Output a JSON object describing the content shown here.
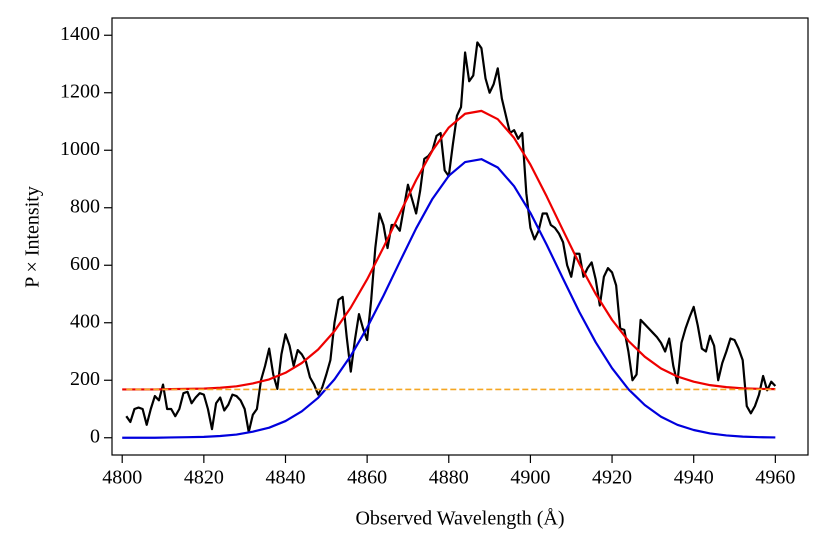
{
  "chart_data": {
    "type": "line",
    "xlabel": "Observed Wavelength (Å)",
    "ylabel": "P × Intensity",
    "xlim": [
      4797.5,
      4968
    ],
    "ylim": [
      -60,
      1460
    ],
    "xticks": [
      4800,
      4820,
      4840,
      4860,
      4880,
      4900,
      4920,
      4940,
      4960
    ],
    "yticks": [
      0,
      200,
      400,
      600,
      800,
      1000,
      1200,
      1400
    ],
    "grid": false,
    "series": [
      {
        "color": "#000000",
        "style": "solid",
        "x": [
          4801,
          4802,
          4803,
          4804,
          4805,
          4806,
          4807,
          4808,
          4809,
          4810,
          4811,
          4812,
          4813,
          4814,
          4815,
          4816,
          4817,
          4818,
          4819,
          4820,
          4821,
          4822,
          4823,
          4824,
          4825,
          4826,
          4827,
          4828,
          4829,
          4830,
          4831,
          4832,
          4833,
          4834,
          4835,
          4836,
          4837,
          4838,
          4839,
          4840,
          4841,
          4842,
          4843,
          4844,
          4845,
          4846,
          4847,
          4848,
          4849,
          4850,
          4851,
          4852,
          4853,
          4854,
          4855,
          4856,
          4857,
          4858,
          4859,
          4860,
          4861,
          4862,
          4863,
          4864,
          4865,
          4866,
          4867,
          4868,
          4869,
          4870,
          4871,
          4872,
          4873,
          4874,
          4875,
          4876,
          4877,
          4878,
          4879,
          4880,
          4881,
          4882,
          4883,
          4884,
          4885,
          4886,
          4887,
          4888,
          4889,
          4890,
          4891,
          4892,
          4893,
          4894,
          4895,
          4896,
          4897,
          4898,
          4899,
          4900,
          4901,
          4902,
          4903,
          4904,
          4905,
          4906,
          4907,
          4908,
          4909,
          4910,
          4911,
          4912,
          4913,
          4914,
          4915,
          4916,
          4917,
          4918,
          4919,
          4920,
          4921,
          4922,
          4923,
          4924,
          4925,
          4926,
          4927,
          4928,
          4929,
          4930,
          4931,
          4932,
          4933,
          4934,
          4935,
          4936,
          4937,
          4938,
          4939,
          4940,
          4941,
          4942,
          4943,
          4944,
          4945,
          4946,
          4947,
          4948,
          4949,
          4950,
          4951,
          4952,
          4953,
          4954,
          4955,
          4956,
          4957,
          4958,
          4959,
          4960
        ],
        "values": [
          75,
          55,
          100,
          105,
          100,
          45,
          100,
          145,
          130,
          185,
          100,
          100,
          75,
          100,
          155,
          160,
          120,
          140,
          155,
          150,
          100,
          30,
          120,
          140,
          95,
          115,
          150,
          145,
          130,
          100,
          20,
          80,
          100,
          200,
          250,
          310,
          220,
          170,
          290,
          360,
          320,
          250,
          305,
          290,
          265,
          210,
          185,
          150,
          175,
          220,
          270,
          400,
          480,
          490,
          350,
          230,
          340,
          430,
          380,
          340,
          480,
          660,
          780,
          740,
          660,
          740,
          740,
          720,
          800,
          880,
          830,
          780,
          860,
          970,
          980,
          1000,
          1050,
          1060,
          930,
          910,
          1020,
          1120,
          1150,
          1340,
          1240,
          1260,
          1375,
          1355,
          1250,
          1200,
          1230,
          1285,
          1180,
          1120,
          1060,
          1070,
          1040,
          1060,
          850,
          730,
          690,
          720,
          780,
          780,
          740,
          730,
          710,
          680,
          600,
          560,
          640,
          640,
          560,
          590,
          610,
          550,
          460,
          560,
          590,
          575,
          530,
          380,
          375,
          300,
          200,
          220,
          410,
          395,
          380,
          365,
          350,
          330,
          300,
          345,
          250,
          190,
          330,
          380,
          420,
          455,
          390,
          310,
          300,
          355,
          320,
          200,
          260,
          300,
          345,
          340,
          310,
          270,
          110,
          85,
          110,
          150,
          215,
          165,
          195,
          180
        ]
      },
      {
        "color": "#ee0000",
        "style": "solid",
        "x": [
          4800,
          4804,
          4808,
          4812,
          4816,
          4820,
          4824,
          4828,
          4832,
          4836,
          4840,
          4844,
          4848,
          4852,
          4856,
          4860,
          4864,
          4868,
          4872,
          4876,
          4880,
          4884,
          4888,
          4892,
          4896,
          4900,
          4904,
          4908,
          4912,
          4916,
          4920,
          4924,
          4928,
          4932,
          4936,
          4940,
          4944,
          4948,
          4952,
          4956,
          4960
        ],
        "values": [
          168,
          168,
          168,
          169,
          170,
          171,
          174,
          179,
          189,
          203,
          226,
          260,
          307,
          371,
          453,
          551,
          662,
          780,
          896,
          999,
          1079,
          1127,
          1137,
          1108,
          1043,
          950,
          839,
          721,
          605,
          500,
          410,
          337,
          282,
          241,
          213,
          195,
          183,
          176,
          172,
          170,
          169
        ]
      },
      {
        "color": "#0000dd",
        "style": "solid",
        "x": [
          4800,
          4804,
          4808,
          4812,
          4816,
          4820,
          4824,
          4828,
          4832,
          4836,
          4840,
          4844,
          4848,
          4852,
          4856,
          4860,
          4864,
          4868,
          4872,
          4876,
          4880,
          4884,
          4888,
          4892,
          4896,
          4900,
          4904,
          4908,
          4912,
          4916,
          4920,
          4924,
          4928,
          4932,
          4936,
          4940,
          4944,
          4948,
          4952,
          4956,
          4960
        ],
        "values": [
          0,
          0,
          0,
          1,
          2,
          3,
          6,
          11,
          21,
          35,
          58,
          92,
          139,
          203,
          285,
          383,
          494,
          612,
          728,
          831,
          911,
          959,
          969,
          940,
          875,
          782,
          671,
          553,
          437,
          332,
          242,
          169,
          114,
          73,
          45,
          27,
          15,
          8,
          4,
          2,
          1
        ]
      },
      {
        "color": "#f5a623",
        "style": "dashed",
        "x": [
          4801,
          4960
        ],
        "values": [
          168,
          168
        ]
      }
    ]
  }
}
